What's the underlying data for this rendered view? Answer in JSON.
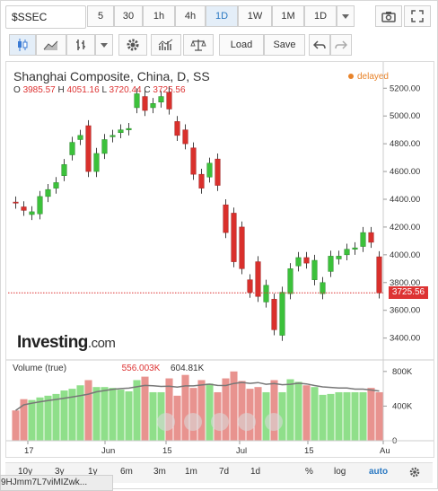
{
  "toolbar": {
    "symbol": "$SSEC",
    "intervals": [
      "5",
      "30",
      "1h",
      "4h",
      "1D",
      "1W",
      "1M"
    ],
    "active_interval": "1D",
    "interval_dropdown": "1D"
  },
  "toolbar2": {
    "load_label": "Load",
    "save_label": "Save"
  },
  "chart": {
    "title": "Shanghai Composite, China, D, SS",
    "ohlc": {
      "o_label": "O",
      "o": "3985.57",
      "h_label": "H",
      "h": "4051.16",
      "l_label": "L",
      "l": "3720.44",
      "c_label": "C",
      "c": "3725.56"
    },
    "status": "delayed",
    "last_price": "3725.56",
    "logo_main": "Investing",
    "logo_suffix": ".com",
    "volume_label": "Volume (true)",
    "volume_value1": "556.003K",
    "volume_value2": "604.81K"
  },
  "chart_data": {
    "type": "candlestick",
    "title": "Shanghai Composite, China, D, SS",
    "y_ticks": [
      "5200.00",
      "5000.00",
      "4800.00",
      "4600.00",
      "4400.00",
      "4200.00",
      "4000.00",
      "3800.00",
      "3600.00",
      "3400.00"
    ],
    "ylim": [
      3320,
      5260
    ],
    "x_ticks": [
      "17",
      "Jun",
      "15",
      "Jul",
      "15",
      "Au"
    ],
    "volume_ticks": [
      "800K",
      "400K",
      "0"
    ],
    "volume_ylim": [
      0,
      850
    ],
    "candles": [
      {
        "o": 4380,
        "c": 4372
      },
      {
        "o": 4345,
        "c": 4320
      },
      {
        "o": 4290,
        "c": 4310
      },
      {
        "o": 4295,
        "c": 4420
      },
      {
        "o": 4420,
        "c": 4470
      },
      {
        "o": 4480,
        "c": 4520
      },
      {
        "o": 4570,
        "c": 4650
      },
      {
        "o": 4720,
        "c": 4810
      },
      {
        "o": 4830,
        "c": 4860
      },
      {
        "o": 4930,
        "c": 4600
      },
      {
        "o": 4600,
        "c": 4730
      },
      {
        "o": 4730,
        "c": 4830
      },
      {
        "o": 4850,
        "c": 4860
      },
      {
        "o": 4880,
        "c": 4900
      },
      {
        "o": 4900,
        "c": 4910
      },
      {
        "o": 5060,
        "c": 5160
      },
      {
        "o": 5140,
        "c": 5040
      },
      {
        "o": 5060,
        "c": 5090
      },
      {
        "o": 5100,
        "c": 5140
      },
      {
        "o": 5170,
        "c": 5050
      },
      {
        "o": 4960,
        "c": 4860
      },
      {
        "o": 4900,
        "c": 4800
      },
      {
        "o": 4770,
        "c": 4580
      },
      {
        "o": 4580,
        "c": 4480
      },
      {
        "o": 4560,
        "c": 4660
      },
      {
        "o": 4690,
        "c": 4500
      },
      {
        "o": 4360,
        "c": 4160
      },
      {
        "o": 4300,
        "c": 3950
      },
      {
        "o": 4200,
        "c": 3900
      },
      {
        "o": 3820,
        "c": 3730
      },
      {
        "o": 3950,
        "c": 3700
      },
      {
        "o": 3660,
        "c": 3780
      },
      {
        "o": 3680,
        "c": 3460
      },
      {
        "o": 3420,
        "c": 3730
      },
      {
        "o": 3720,
        "c": 3900
      },
      {
        "o": 3920,
        "c": 3980
      },
      {
        "o": 3980,
        "c": 3940
      },
      {
        "o": 3820,
        "c": 3960
      },
      {
        "o": 3720,
        "c": 3800
      },
      {
        "o": 3880,
        "c": 3990
      },
      {
        "o": 3970,
        "c": 3990
      },
      {
        "o": 4000,
        "c": 4040
      },
      {
        "o": 4040,
        "c": 4050
      },
      {
        "o": 4060,
        "c": 4160
      },
      {
        "o": 4160,
        "c": 4090
      },
      {
        "o": 3985.57,
        "c": 3725.56
      }
    ],
    "volume": [
      350,
      480,
      470,
      500,
      520,
      540,
      580,
      600,
      640,
      700,
      620,
      620,
      610,
      590,
      570,
      700,
      740,
      560,
      560,
      720,
      520,
      760,
      610,
      700,
      660,
      560,
      720,
      800,
      690,
      600,
      620,
      560,
      700,
      560,
      710,
      680,
      640,
      620,
      530,
      540,
      560,
      560,
      560,
      560,
      610,
      560
    ]
  },
  "bottom": {
    "ranges": [
      "10y",
      "3y",
      "1y",
      "6m",
      "3m",
      "1m",
      "7d",
      "1d"
    ],
    "pct": "%",
    "log": "log",
    "auto": "auto"
  },
  "url_fragment": "9HJmm7L7viMIZwk..."
}
